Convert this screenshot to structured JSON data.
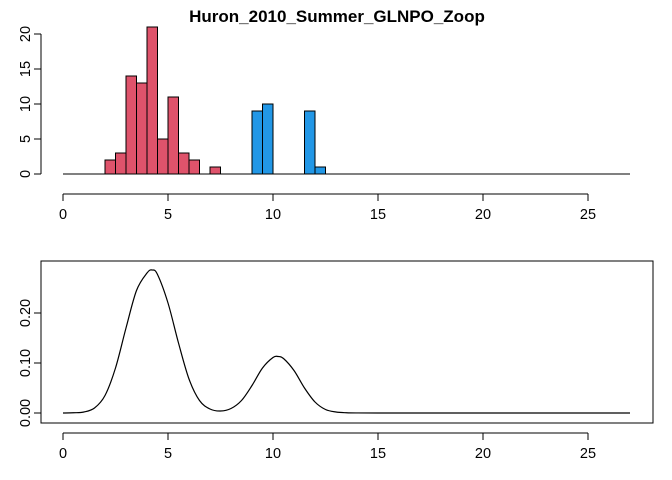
{
  "title": "Huron_2010_Summer_GLNPO_Zoop",
  "colors": {
    "group1": "#DF536B",
    "group2": "#2297E6"
  },
  "chart_data": [
    {
      "type": "bar",
      "subtype": "histogram",
      "title": "Huron_2010_Summer_GLNPO_Zoop",
      "xlabel": "",
      "ylabel": "",
      "xlim": [
        0,
        27
      ],
      "ylim": [
        0,
        21
      ],
      "x_ticks": [
        0,
        5,
        10,
        15,
        20,
        25
      ],
      "y_ticks": [
        0,
        5,
        10,
        15,
        20
      ],
      "bin_width": 0.5,
      "baseline_range": [
        0,
        27
      ],
      "series": [
        {
          "color": "#DF536B",
          "bins": [
            {
              "start": 2.0,
              "count": 2
            },
            {
              "start": 2.5,
              "count": 3
            },
            {
              "start": 3.0,
              "count": 14
            },
            {
              "start": 3.5,
              "count": 13
            },
            {
              "start": 4.0,
              "count": 21
            },
            {
              "start": 4.5,
              "count": 5
            },
            {
              "start": 5.0,
              "count": 11
            },
            {
              "start": 5.5,
              "count": 3
            },
            {
              "start": 6.0,
              "count": 2
            },
            {
              "start": 7.0,
              "count": 1
            }
          ]
        },
        {
          "color": "#2297E6",
          "bins": [
            {
              "start": 9.0,
              "count": 9
            },
            {
              "start": 9.5,
              "count": 10
            },
            {
              "start": 11.5,
              "count": 9
            },
            {
              "start": 12.0,
              "count": 1
            }
          ]
        }
      ]
    },
    {
      "type": "line",
      "subtype": "density",
      "title": "",
      "xlabel": "",
      "ylabel": "",
      "xlim": [
        0,
        27
      ],
      "ylim": [
        0,
        0.29
      ],
      "x_ticks": [
        0,
        5,
        10,
        15,
        20,
        25
      ],
      "y_ticks": [
        0.0,
        0.1,
        0.2
      ],
      "y_tick_labels": [
        "0.00",
        "0.10",
        "0.20"
      ],
      "x": [
        0,
        0.5,
        1.0,
        1.5,
        2.0,
        2.5,
        3.0,
        3.5,
        4.0,
        4.25,
        4.5,
        5.0,
        5.5,
        6.0,
        6.5,
        7.0,
        7.5,
        8.0,
        8.5,
        9.0,
        9.5,
        10.0,
        10.25,
        10.5,
        11.0,
        11.5,
        12.0,
        12.5,
        13.0,
        13.5,
        14.0,
        15.0,
        17.0,
        20.0,
        23.0,
        25.0,
        27.0
      ],
      "y": [
        0.0,
        0.0005,
        0.002,
        0.01,
        0.035,
        0.09,
        0.17,
        0.245,
        0.28,
        0.286,
        0.277,
        0.22,
        0.14,
        0.068,
        0.025,
        0.008,
        0.004,
        0.009,
        0.025,
        0.055,
        0.09,
        0.111,
        0.113,
        0.109,
        0.085,
        0.05,
        0.022,
        0.007,
        0.002,
        0.0005,
        0.0001,
        0.0,
        0.0,
        0.0,
        0.0,
        0.0,
        0.0
      ]
    }
  ]
}
